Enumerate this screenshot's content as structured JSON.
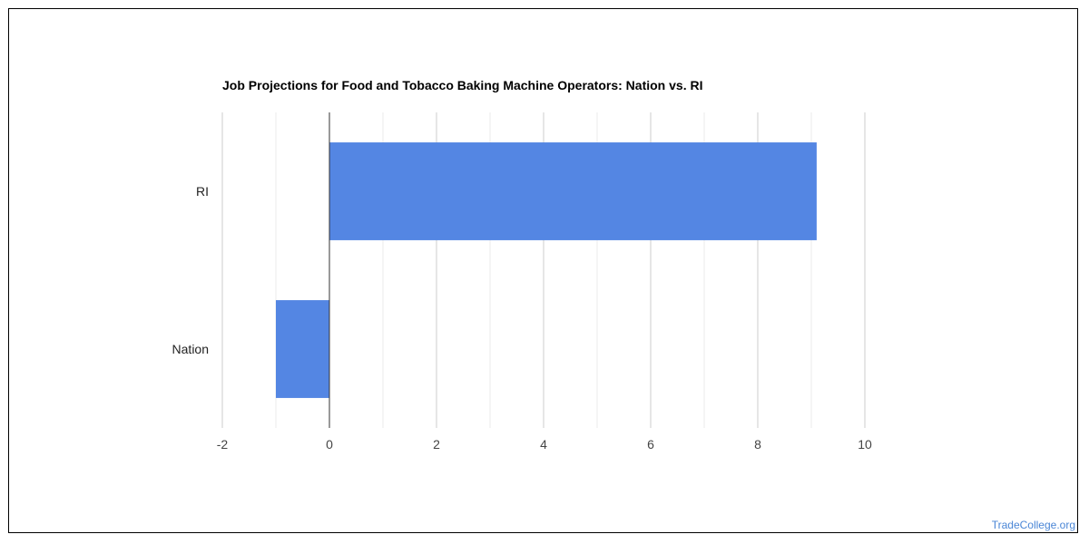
{
  "chart_data": {
    "type": "bar",
    "orientation": "horizontal",
    "title": "Job Projections for Food and Tobacco Baking Machine Operators: Nation vs. RI",
    "categories": [
      "RI",
      "Nation"
    ],
    "values": [
      9.1,
      -1
    ],
    "xlim": [
      -2,
      10
    ],
    "x_ticks": [
      -2,
      0,
      2,
      4,
      6,
      8,
      10
    ],
    "minor_gridlines": true,
    "grid": true,
    "legend": "none",
    "bar_color": "#5486e3"
  },
  "watermark": "TradeCollege.org"
}
